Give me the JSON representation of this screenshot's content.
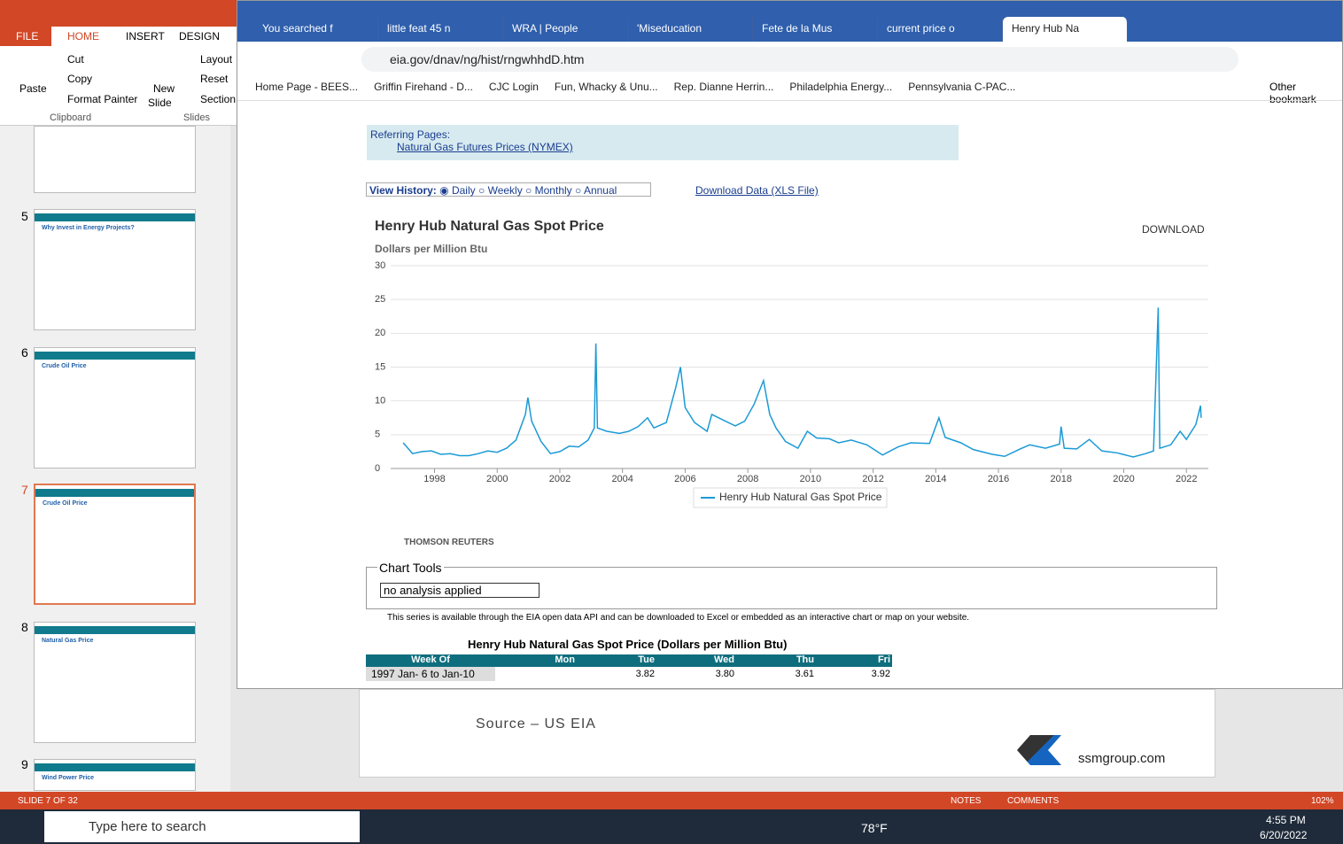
{
  "powerpoint": {
    "tabs": [
      "FILE",
      "HOME",
      "INSERT",
      "DESIGN"
    ],
    "paste": "Paste",
    "clipboard": [
      "Cut",
      "Copy",
      "Format Painter"
    ],
    "new_slide": [
      "New",
      "Slide"
    ],
    "slides_group": [
      "Layout",
      "Reset",
      "Section"
    ],
    "group_labels": [
      "Clipboard",
      "Slides"
    ],
    "slide_numbers": [
      "5",
      "6",
      "7",
      "8",
      "9"
    ],
    "slide_titles": [
      "Why Invest in Energy Projects?",
      "Crude Oil Price",
      "Crude Oil Price",
      "Natural Gas Price",
      "Wind Power Price"
    ],
    "slide_source": "Source – US EIA",
    "slide_site": "ssmgroup.com",
    "status": "SLIDE 7 OF 32",
    "notes": "NOTES",
    "comments": "COMMENTS",
    "zoom": "102%"
  },
  "browser": {
    "tabs": [
      "You searched f",
      "little feat 45 n",
      "WRA | People",
      "'Miseducation",
      "Fete de la Mus",
      "current price o",
      "Henry Hub Na"
    ],
    "url": "eia.gov/dnav/ng/hist/rngwhhdD.htm",
    "bookmarks": [
      "Home Page - BEES...",
      "Griffin Firehand - D...",
      "CJC Login",
      "Fun, Whacky & Unu...",
      "Rep. Dianne Herrin...",
      "Philadelphia Energy...",
      "Pennsylvania C-PAC..."
    ],
    "other_bookmarks": "Other bookmark"
  },
  "page": {
    "referring": "Referring Pages:",
    "referring_link": "Natural Gas Futures Prices (NYMEX)",
    "view_history": "View History:",
    "history_options": [
      "Daily",
      "Weekly",
      "Monthly",
      "Annual"
    ],
    "download_data": "Download Data (XLS File)",
    "download": "DOWNLOAD",
    "thomson": "THOMSON REUTERS",
    "chart_tools": "Chart Tools",
    "analysis": "no analysis applied",
    "api_note": "This series is available through the EIA open data API and can be downloaded to Excel or embedded as an interactive chart or map on your website.",
    "table": {
      "title": "Henry Hub Natural Gas Spot Price (Dollars per Million Btu)",
      "header": [
        "Week Of",
        "Mon",
        "Tue",
        "Wed",
        "Thu",
        "Fri"
      ],
      "rows": [
        [
          "1997 Jan- 6 to Jan-10",
          null,
          "3.82",
          "3.80",
          "3.61",
          "3.92"
        ]
      ]
    }
  },
  "chart_data": {
    "type": "line",
    "title": "Henry Hub Natural Gas Spot Price",
    "subtitle": "Dollars per Million Btu",
    "x": [
      1997.0,
      1997.3,
      1997.6,
      1997.9,
      1998.2,
      1998.5,
      1998.8,
      1999.1,
      1999.4,
      1999.7,
      2000.0,
      2000.3,
      2000.6,
      2000.9,
      2000.98,
      2001.1,
      2001.4,
      2001.7,
      2002.0,
      2002.3,
      2002.6,
      2002.9,
      2003.1,
      2003.15,
      2003.2,
      2003.5,
      2003.9,
      2004.2,
      2004.5,
      2004.8,
      2005.0,
      2005.4,
      2005.7,
      2005.85,
      2006.0,
      2006.3,
      2006.7,
      2006.85,
      2007.2,
      2007.6,
      2007.9,
      2008.2,
      2008.5,
      2008.7,
      2008.9,
      2009.2,
      2009.6,
      2009.9,
      2010.2,
      2010.6,
      2010.9,
      2011.3,
      2011.8,
      2012.3,
      2012.8,
      2013.2,
      2013.8,
      2014.1,
      2014.3,
      2014.8,
      2015.2,
      2015.8,
      2016.2,
      2016.7,
      2017.0,
      2017.5,
      2017.95,
      2018.0,
      2018.1,
      2018.5,
      2018.9,
      2019.3,
      2019.8,
      2020.3,
      2020.7,
      2020.95,
      2021.1,
      2021.15,
      2021.5,
      2021.8,
      2022.0,
      2022.3,
      2022.45,
      2022.47
    ],
    "series": [
      {
        "name": "Henry Hub Natural Gas Spot Price",
        "color": "#1b9ad6",
        "values": [
          3.8,
          2.2,
          2.5,
          2.6,
          2.1,
          2.2,
          1.9,
          1.9,
          2.2,
          2.6,
          2.4,
          3.0,
          4.2,
          8.0,
          10.5,
          7.0,
          4.0,
          2.2,
          2.5,
          3.3,
          3.2,
          4.2,
          6.0,
          18.5,
          6.0,
          5.5,
          5.2,
          5.5,
          6.2,
          7.5,
          6.0,
          6.8,
          12.0,
          15.0,
          9.0,
          6.8,
          5.5,
          8.0,
          7.2,
          6.3,
          7.0,
          9.5,
          13.0,
          8.0,
          6.0,
          4.0,
          3.0,
          5.5,
          4.5,
          4.4,
          3.8,
          4.2,
          3.5,
          2.0,
          3.2,
          3.8,
          3.7,
          7.5,
          4.6,
          3.8,
          2.8,
          2.1,
          1.8,
          2.9,
          3.5,
          3.0,
          3.6,
          6.2,
          3.0,
          2.9,
          4.3,
          2.6,
          2.3,
          1.7,
          2.2,
          2.6,
          23.8,
          3.0,
          3.5,
          5.5,
          4.3,
          6.5,
          9.3,
          7.5
        ]
      }
    ],
    "xlim": [
      1996.6,
      2022.7
    ],
    "xticks": [
      1998,
      2000,
      2002,
      2004,
      2006,
      2008,
      2010,
      2012,
      2014,
      2016,
      2018,
      2020,
      2022
    ],
    "ylim": [
      0,
      30
    ],
    "yticks": [
      0,
      5,
      10,
      15,
      20,
      25,
      30
    ],
    "grid": true,
    "legend": "bottom"
  },
  "taskbar": {
    "search": "Type here to search",
    "weather": "78°F",
    "time": "4:55 PM",
    "date": "6/20/2022"
  }
}
